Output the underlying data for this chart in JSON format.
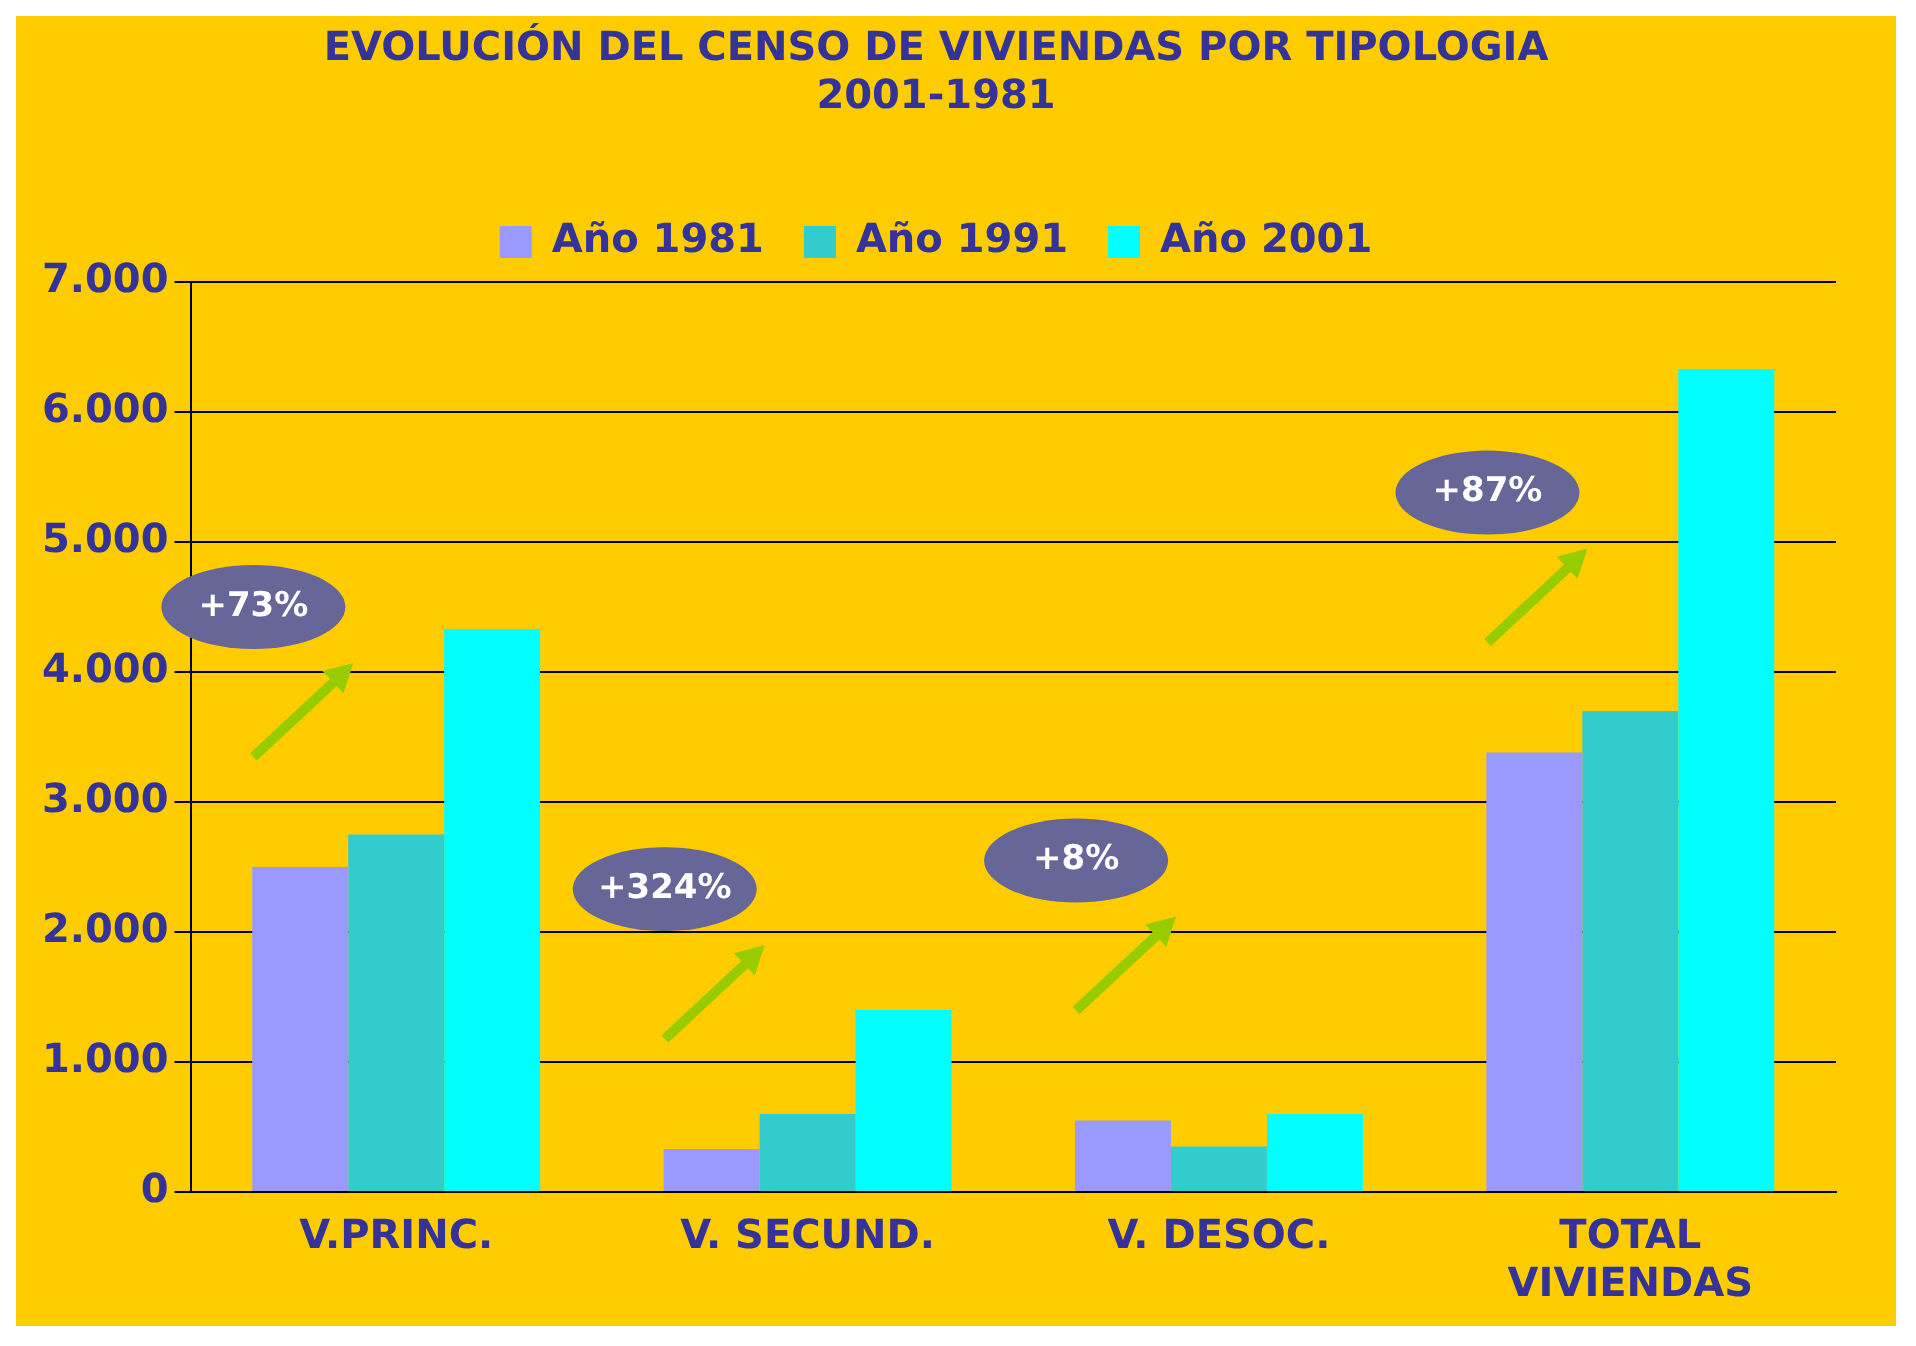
{
  "chart_data": {
    "type": "bar",
    "title": "EVOLUCIÓN DEL CENSO DE VIVIENDAS POR TIPOLOGIA 2001-1981",
    "categories": [
      "V.PRINC.",
      "V. SECUND.",
      "V. DESOC.",
      "TOTAL VIVIENDAS"
    ],
    "series": [
      {
        "name": "Año 1981",
        "color": "#9999ff",
        "values": [
          2500,
          330,
          550,
          3380
        ]
      },
      {
        "name": "Año 1991",
        "color": "#33cccc",
        "values": [
          2750,
          600,
          350,
          3700
        ]
      },
      {
        "name": "Año 2001",
        "color": "#00ffff",
        "values": [
          4330,
          1400,
          600,
          6330
        ]
      }
    ],
    "ylim": [
      0,
      7000
    ],
    "yticks": [
      {
        "value": 0,
        "label": "0"
      },
      {
        "value": 1000,
        "label": "1.000"
      },
      {
        "value": 2000,
        "label": "2.000"
      },
      {
        "value": 3000,
        "label": "3.000"
      },
      {
        "value": 4000,
        "label": "4.000"
      },
      {
        "value": 5000,
        "label": "5.000"
      },
      {
        "value": 6000,
        "label": "6.000"
      },
      {
        "value": 7000,
        "label": "7.000"
      }
    ],
    "grid": "y",
    "legend": "top",
    "annotations": [
      "+73%",
      "+324%",
      "+8%",
      "+87%"
    ]
  }
}
